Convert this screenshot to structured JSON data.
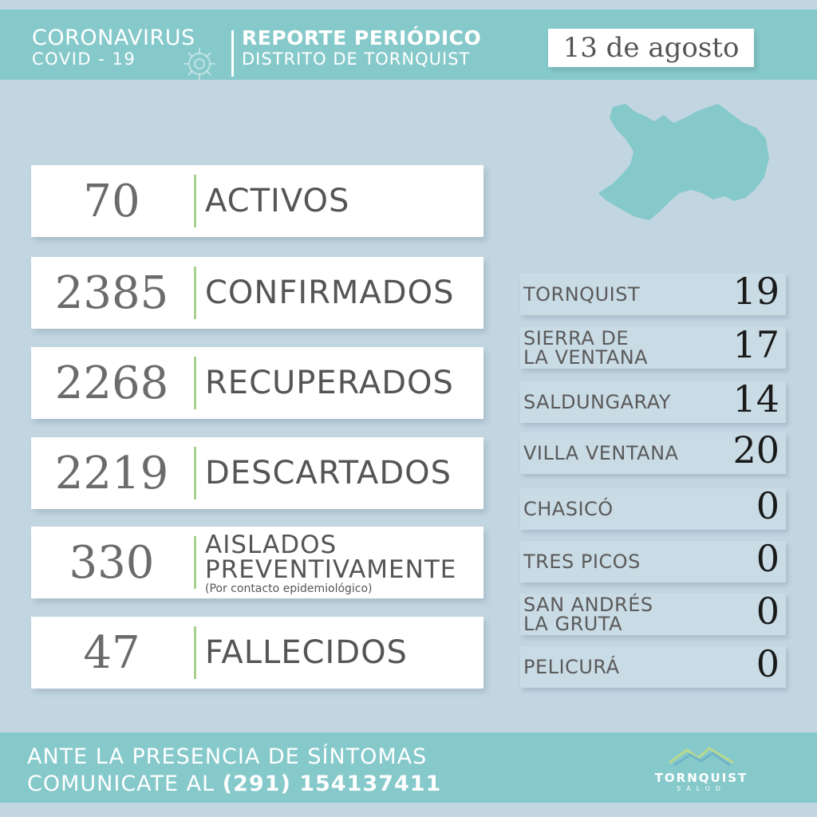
{
  "header": {
    "title_left": "CORONAVIRUS",
    "subtitle_left": "COVID - 19",
    "title_right": "REPORTE PERIÓDICO",
    "subtitle_right": "DISTRITO DE TORNQUIST",
    "date": "13 de agosto"
  },
  "stats": [
    {
      "value": "70",
      "label": "ACTIVOS"
    },
    {
      "value": "2385",
      "label": "CONFIRMADOS"
    },
    {
      "value": "2268",
      "label": "RECUPERADOS"
    },
    {
      "value": "2219",
      "label": "DESCARTADOS"
    },
    {
      "value": "330",
      "label_line1": "AISLADOS",
      "label_line2": "PREVENTIVAMENTE",
      "note": "(Por contacto epidemiológico)"
    },
    {
      "value": "47",
      "label": "FALLECIDOS"
    }
  ],
  "localities": [
    {
      "name": "TORNQUIST",
      "value": "19"
    },
    {
      "name_line1": "SIERRA DE",
      "name_line2": "LA VENTANA",
      "value": "17"
    },
    {
      "name": "SALDUNGARAY",
      "value": "14"
    },
    {
      "name": "VILLA VENTANA",
      "value": "20"
    },
    {
      "name": "CHASICÓ",
      "value": "0"
    },
    {
      "name": "TRES PICOS",
      "value": "0"
    },
    {
      "name_line1": "SAN ANDRÉS",
      "name_line2": "LA GRUTA",
      "value": "0"
    },
    {
      "name": "PELICURÁ",
      "value": "0"
    }
  ],
  "footer": {
    "line1": "ANTE LA PRESENCIA DE SÍNTOMAS",
    "line2_prefix": "COMUNICATE AL",
    "phone": "(291) 154137411",
    "brand_name": "TORNQUIST",
    "brand_sub": "SALUD"
  },
  "colors": {
    "background": "#c2d6e2",
    "band": "#86c9cb",
    "accent_bar": "#a9d18e"
  },
  "icons": {
    "virus": "virus-icon",
    "map": "district-map-icon",
    "mountains": "mountains-logo-icon"
  }
}
